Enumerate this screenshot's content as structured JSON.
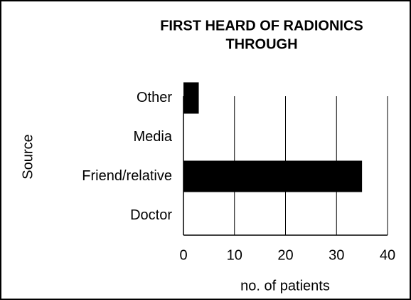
{
  "chart_data": {
    "type": "barh",
    "title": [
      "FIRST HEARD OF RADIONICS",
      "THROUGH"
    ],
    "categories": [
      "Other",
      "Media",
      "Friend/relative",
      "Doctor"
    ],
    "values": [
      3,
      0,
      35,
      0
    ],
    "color": "#000000",
    "xlabel": "no. of patients",
    "ylabel": "Source",
    "xlim": [
      0,
      40
    ],
    "xticks": [
      0,
      10,
      20,
      30,
      40
    ],
    "grid": true
  }
}
